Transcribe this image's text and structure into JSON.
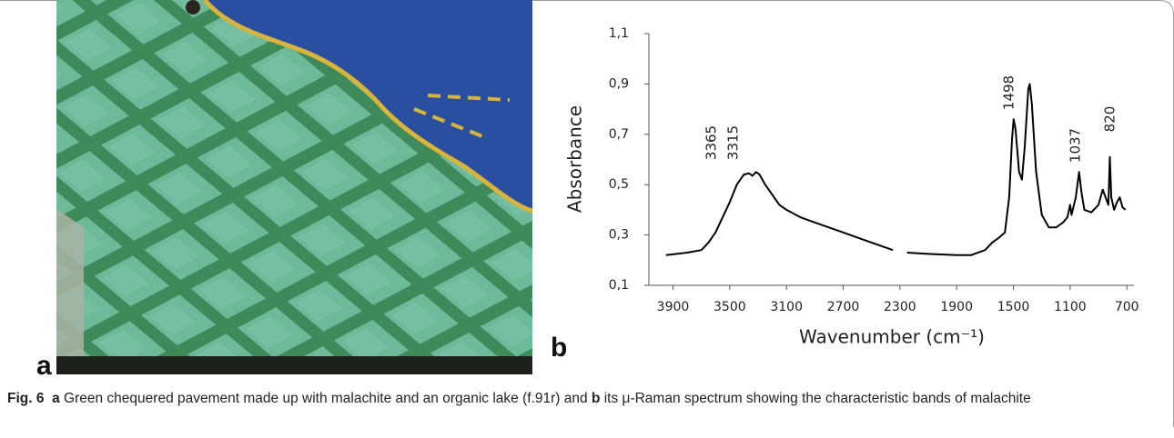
{
  "panel_labels": [
    "a",
    "b"
  ],
  "chart_data": {
    "type": "line",
    "y_label": "Absorbance",
    "x_label": "Wavenumber (cm⁻¹)",
    "x": [
      3950,
      3800,
      3700,
      3650,
      3600,
      3550,
      3500,
      3450,
      3400,
      3365,
      3340,
      3315,
      3290,
      3250,
      3200,
      3150,
      3100,
      3000,
      2900,
      2800,
      2700,
      2600,
      2500,
      2400,
      2350,
      2300,
      2250,
      2100,
      1900,
      1800,
      1700,
      1650,
      1600,
      1560,
      1530,
      1510,
      1498,
      1485,
      1460,
      1440,
      1420,
      1395,
      1385,
      1370,
      1340,
      1300,
      1250,
      1200,
      1150,
      1120,
      1100,
      1090,
      1060,
      1037,
      1020,
      1000,
      950,
      900,
      870,
      850,
      830,
      820,
      810,
      790,
      770,
      750,
      730,
      710
    ],
    "values": [
      0.22,
      0.23,
      0.24,
      0.27,
      0.31,
      0.37,
      0.43,
      0.5,
      0.54,
      0.545,
      0.535,
      0.55,
      0.54,
      0.5,
      0.46,
      0.42,
      0.4,
      0.37,
      0.35,
      0.33,
      0.31,
      0.29,
      0.27,
      0.25,
      0.24,
      null,
      0.23,
      0.225,
      0.22,
      0.22,
      0.24,
      0.27,
      0.29,
      0.31,
      0.45,
      0.68,
      0.76,
      0.72,
      0.55,
      0.52,
      0.65,
      0.88,
      0.9,
      0.82,
      0.55,
      0.38,
      0.33,
      0.33,
      0.35,
      0.37,
      0.42,
      0.38,
      0.45,
      0.55,
      0.47,
      0.4,
      0.39,
      0.42,
      0.48,
      0.45,
      0.42,
      0.61,
      0.45,
      0.4,
      0.43,
      0.45,
      0.41,
      0.4
    ],
    "color": "#000000",
    "xlim": [
      4070,
      650
    ],
    "xticks": [
      3900,
      3500,
      3100,
      2700,
      2300,
      1900,
      1500,
      1100,
      700
    ],
    "ylim": [
      0.1,
      1.1
    ],
    "yticks": [
      {
        "value": 1.1,
        "label": "1,1"
      },
      {
        "value": 0.9,
        "label": "0,9"
      },
      {
        "value": 0.7,
        "label": "0,7"
      },
      {
        "value": 0.5,
        "label": "0,5"
      },
      {
        "value": 0.3,
        "label": "0,3"
      },
      {
        "value": 0.1,
        "label": "0,1"
      }
    ],
    "annotations": [
      "3365",
      "3315",
      "1498",
      "1037",
      "820"
    ]
  },
  "caption": {
    "label": "Fig. 6",
    "parts": [
      "a",
      "Green chequered pavement made up with malachite and an organic lake (f.91r) and",
      "b",
      "its μ-Raman spectrum showing the characteristic bands of malachite"
    ]
  }
}
